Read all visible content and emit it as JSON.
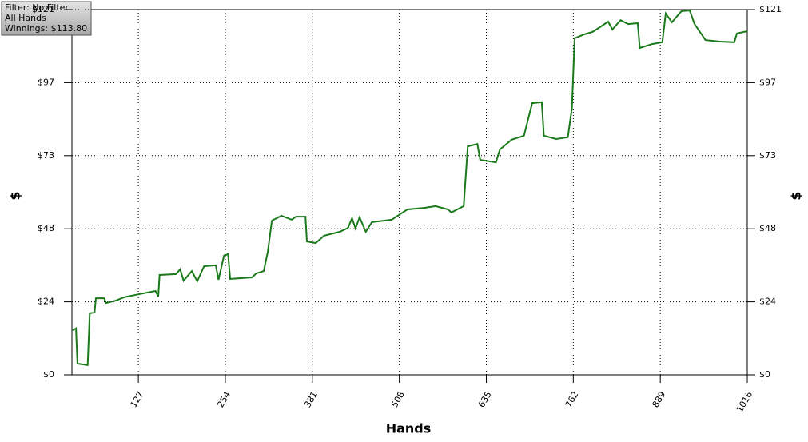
{
  "chart_data": {
    "type": "line",
    "info": [
      "Filter: No Filter",
      "All Hands",
      "Winnings: $113.80"
    ],
    "xlabel": "Hands",
    "ylabel": "$",
    "y2label": "$",
    "xlim": [
      30,
      1016
    ],
    "xticks": [
      127,
      254,
      381,
      508,
      635,
      762,
      889,
      1016
    ],
    "ylim": [
      0,
      121
    ],
    "yticks": [
      {
        "value": 0,
        "label": "$0"
      },
      {
        "value": 24.2,
        "label": "$24"
      },
      {
        "value": 48.4,
        "label": "$48"
      },
      {
        "value": 72.6,
        "label": "$73"
      },
      {
        "value": 96.8,
        "label": "$97"
      },
      {
        "value": 121,
        "label": "$121"
      }
    ],
    "grid": true,
    "color": "#1a7a1a",
    "x": [
      31,
      36,
      38,
      53,
      56,
      63,
      65,
      77,
      80,
      94,
      106,
      127,
      152,
      156,
      158,
      182,
      188,
      193,
      205,
      213,
      223,
      240,
      244,
      252,
      258,
      261,
      293,
      299,
      310,
      316,
      322,
      336,
      351,
      357,
      371,
      373,
      386,
      398,
      421,
      433,
      439,
      444,
      450,
      459,
      468,
      497,
      509,
      520,
      544,
      561,
      579,
      584,
      602,
      608,
      622,
      626,
      649,
      655,
      672,
      690,
      702,
      716,
      719,
      737,
      754,
      760,
      764,
      778,
      790,
      799,
      813,
      819,
      831,
      842,
      856,
      859,
      877,
      892,
      897,
      906,
      920,
      932,
      939,
      955,
      976,
      997,
      1001,
      1011,
      1016
    ],
    "values": [
      14.8,
      15.4,
      3.7,
      3.2,
      20.4,
      20.7,
      25.4,
      25.4,
      23.8,
      24.6,
      25.7,
      26.7,
      27.8,
      25.9,
      33.1,
      33.4,
      35,
      31.2,
      34.4,
      31,
      36,
      36.3,
      31.5,
      39.5,
      40,
      31.8,
      32.3,
      33.6,
      34.4,
      40.8,
      51.1,
      52.7,
      51.4,
      52.4,
      52.4,
      44.2,
      43.7,
      46.1,
      47.4,
      48.7,
      51.9,
      48.5,
      52.2,
      47.4,
      50.6,
      51.4,
      53.2,
      54.8,
      55.3,
      55.9,
      54.8,
      53.8,
      55.9,
      75.7,
      76.5,
      71.2,
      70.4,
      74.7,
      77.9,
      79.2,
      90,
      90.3,
      79.2,
      78.1,
      78.7,
      88.4,
      111.5,
      112.8,
      113.6,
      114.9,
      117,
      114.4,
      117.5,
      116.2,
      116.5,
      108.3,
      109.6,
      110.2,
      119.7,
      116.8,
      120.5,
      120.7,
      116.2,
      110.9,
      110.4,
      110.2,
      113.1,
      113.6,
      113.8
    ]
  }
}
